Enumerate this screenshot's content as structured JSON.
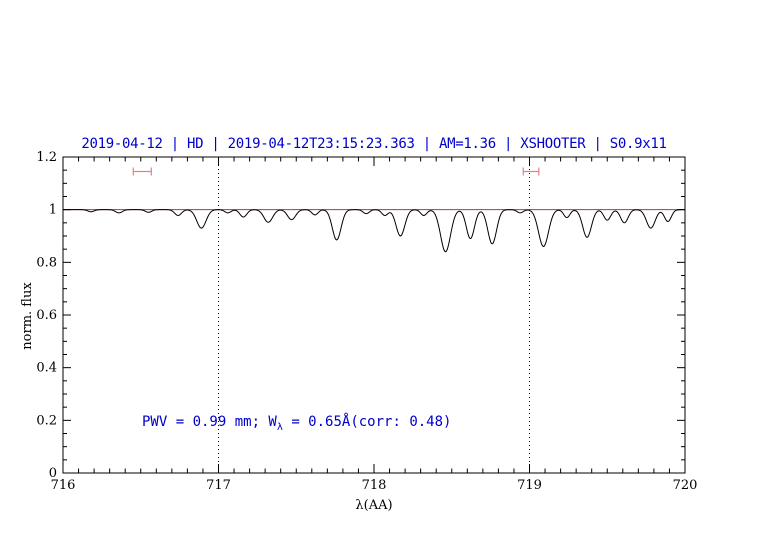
{
  "figure": {
    "annotation": {
      "prefix": "PWV = 0.99 mm; W",
      "sub": "λ",
      "suffix": " = 0.65Å(corr: 0.48)"
    }
  },
  "chart_data": {
    "type": "line",
    "title": "2019-04-12 | HD | 2019-04-12T23:15:23.363 | AM=1.36 | XSHOOTER | S0.9x11",
    "xlabel": "λ(AA)",
    "ylabel": "norm. flux",
    "annotation": "PWV = 0.99 mm; Wλ = 0.65Å(corr: 0.48)",
    "xlim": [
      716,
      720
    ],
    "ylim": [
      0,
      1.2
    ],
    "x_ticks": [
      716,
      717,
      718,
      719,
      720
    ],
    "x_tick_labels": [
      "716",
      "717",
      "718",
      "719",
      "720"
    ],
    "y_ticks": [
      0,
      0.2,
      0.4,
      0.6,
      0.8,
      1,
      1.2
    ],
    "y_tick_labels": [
      "0",
      "0.2",
      "0.4",
      "0.6",
      "0.8",
      "1",
      "1.2"
    ],
    "x_minor_step": 0.1,
    "y_minor_step": 0.05,
    "grid": false,
    "legend": "none",
    "vlines_dotted": [
      717,
      719
    ],
    "continuum_level": 1.0,
    "sampling_step": 0.005,
    "range_markers": [
      {
        "x_center": 716.51,
        "half_width": 0.058,
        "y": 1.145
      },
      {
        "x_center": 719.01,
        "half_width": 0.05,
        "y": 1.145
      }
    ],
    "absorption_lines": [
      {
        "center": 716.18,
        "depth": 0.008,
        "sigma": 0.02
      },
      {
        "center": 716.36,
        "depth": 0.012,
        "sigma": 0.022
      },
      {
        "center": 716.55,
        "depth": 0.01,
        "sigma": 0.02
      },
      {
        "center": 716.74,
        "depth": 0.022,
        "sigma": 0.022
      },
      {
        "center": 716.89,
        "depth": 0.07,
        "sigma": 0.03
      },
      {
        "center": 717.06,
        "depth": 0.012,
        "sigma": 0.02
      },
      {
        "center": 717.16,
        "depth": 0.028,
        "sigma": 0.022
      },
      {
        "center": 717.32,
        "depth": 0.048,
        "sigma": 0.028
      },
      {
        "center": 717.47,
        "depth": 0.038,
        "sigma": 0.026
      },
      {
        "center": 717.62,
        "depth": 0.02,
        "sigma": 0.02
      },
      {
        "center": 717.76,
        "depth": 0.115,
        "sigma": 0.028
      },
      {
        "center": 717.95,
        "depth": 0.015,
        "sigma": 0.02
      },
      {
        "center": 718.07,
        "depth": 0.022,
        "sigma": 0.02
      },
      {
        "center": 718.17,
        "depth": 0.1,
        "sigma": 0.028
      },
      {
        "center": 718.32,
        "depth": 0.022,
        "sigma": 0.02
      },
      {
        "center": 718.46,
        "depth": 0.16,
        "sigma": 0.032
      },
      {
        "center": 718.62,
        "depth": 0.11,
        "sigma": 0.026
      },
      {
        "center": 718.76,
        "depth": 0.13,
        "sigma": 0.028
      },
      {
        "center": 718.94,
        "depth": 0.012,
        "sigma": 0.02
      },
      {
        "center": 719.09,
        "depth": 0.14,
        "sigma": 0.032
      },
      {
        "center": 719.24,
        "depth": 0.03,
        "sigma": 0.02
      },
      {
        "center": 719.37,
        "depth": 0.105,
        "sigma": 0.028
      },
      {
        "center": 719.5,
        "depth": 0.04,
        "sigma": 0.022
      },
      {
        "center": 719.61,
        "depth": 0.05,
        "sigma": 0.024
      },
      {
        "center": 719.78,
        "depth": 0.07,
        "sigma": 0.028
      },
      {
        "center": 719.89,
        "depth": 0.045,
        "sigma": 0.022
      }
    ],
    "colors": {
      "title_text": "#0000cc",
      "annotation_text": "#0000cc",
      "spectrum_line": "#000000",
      "continuum_line": "#c03030",
      "range_marker": "#e88080",
      "axis": "#000000",
      "vline": "#000000"
    }
  }
}
